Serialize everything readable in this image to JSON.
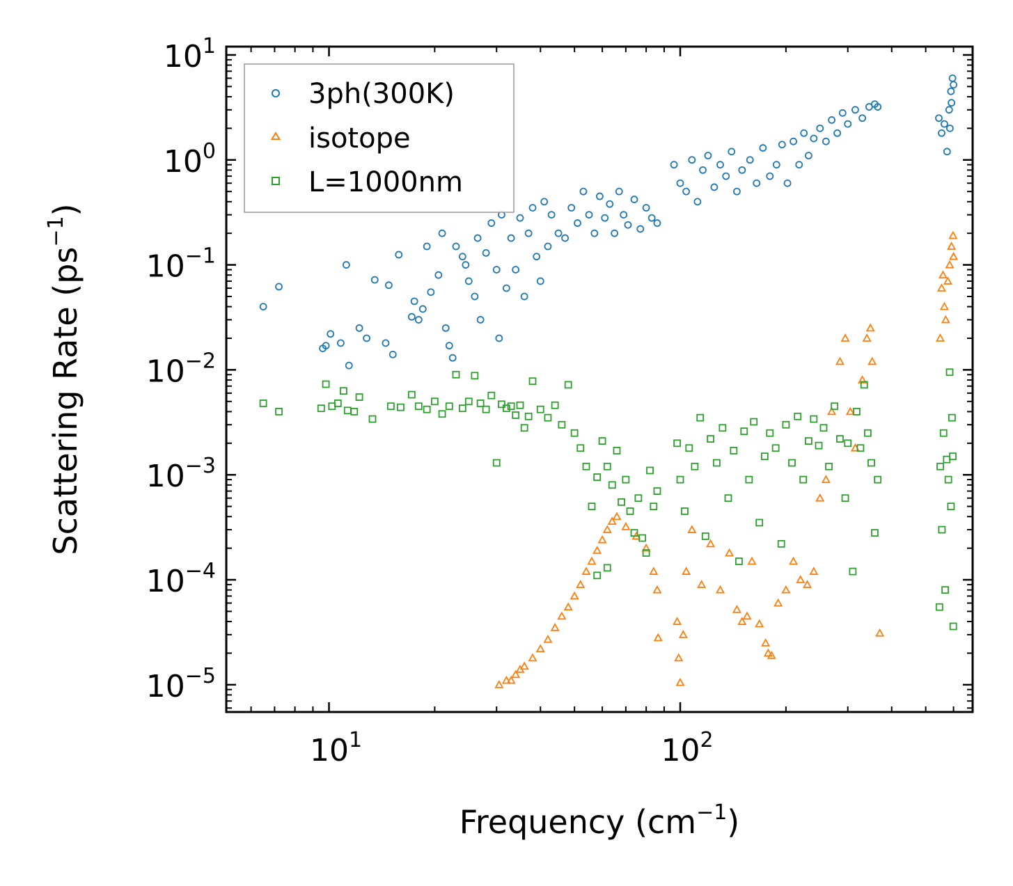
{
  "chart_data": {
    "type": "scatter",
    "title": "",
    "xlabel": "Frequency (cm",
    "xlabel_exp": "−1",
    "xlabel_suffix": ")",
    "ylabel": "Scattering Rate (ps",
    "ylabel_exp": "−1",
    "ylabel_suffix": ")",
    "xscale": "log",
    "yscale": "log",
    "xlim": [
      5.1,
      680
    ],
    "ylim": [
      5.5e-06,
      12
    ],
    "xticks": [
      {
        "value": 10,
        "base": "10",
        "exp": "1"
      },
      {
        "value": 100,
        "base": "10",
        "exp": "2"
      }
    ],
    "yticks": [
      {
        "value": 1e-05,
        "base": "10",
        "exp": "−5"
      },
      {
        "value": 0.0001,
        "base": "10",
        "exp": "−4"
      },
      {
        "value": 0.001,
        "base": "10",
        "exp": "−3"
      },
      {
        "value": 0.01,
        "base": "10",
        "exp": "−2"
      },
      {
        "value": 0.1,
        "base": "10",
        "exp": "−1"
      },
      {
        "value": 1,
        "base": "10",
        "exp": "0"
      },
      {
        "value": 10,
        "base": "10",
        "exp": "1"
      }
    ],
    "legend_position": "top-left",
    "series": [
      {
        "name": "3ph(300K)",
        "marker": "circle",
        "color": "#1f77b4",
        "points": [
          [
            6.5,
            0.04
          ],
          [
            7.2,
            0.062
          ],
          [
            9.6,
            0.016
          ],
          [
            9.8,
            0.017
          ],
          [
            10.1,
            0.022
          ],
          [
            10.8,
            0.018
          ],
          [
            11.2,
            0.1
          ],
          [
            11.4,
            0.011
          ],
          [
            12.2,
            0.025
          ],
          [
            12.8,
            0.02
          ],
          [
            13.5,
            0.072
          ],
          [
            14.5,
            0.018
          ],
          [
            14.8,
            0.064
          ],
          [
            15.2,
            0.014
          ],
          [
            15.8,
            0.125
          ],
          [
            17.2,
            0.032
          ],
          [
            17.5,
            0.045
          ],
          [
            18,
            0.03
          ],
          [
            18.5,
            0.038
          ],
          [
            19,
            0.15
          ],
          [
            19.5,
            0.055
          ],
          [
            20.5,
            0.08
          ],
          [
            21,
            0.2
          ],
          [
            21.5,
            0.025
          ],
          [
            22,
            0.017
          ],
          [
            22.5,
            0.013
          ],
          [
            23,
            0.15
          ],
          [
            24,
            0.12
          ],
          [
            24.5,
            0.1
          ],
          [
            25,
            0.07
          ],
          [
            26,
            0.05
          ],
          [
            26.5,
            0.18
          ],
          [
            27,
            0.03
          ],
          [
            28,
            0.13
          ],
          [
            29,
            0.25
          ],
          [
            30,
            0.09
          ],
          [
            30.5,
            0.02
          ],
          [
            31,
            0.3
          ],
          [
            32,
            0.06
          ],
          [
            33,
            0.18
          ],
          [
            34,
            0.09
          ],
          [
            35,
            0.28
          ],
          [
            36,
            0.05
          ],
          [
            37,
            0.2
          ],
          [
            38,
            0.35
          ],
          [
            39,
            0.12
          ],
          [
            40,
            0.07
          ],
          [
            41,
            0.4
          ],
          [
            42,
            0.15
          ],
          [
            43,
            0.3
          ],
          [
            45,
            0.2
          ],
          [
            47,
            0.18
          ],
          [
            49,
            0.35
          ],
          [
            51,
            0.25
          ],
          [
            53,
            0.5
          ],
          [
            55,
            0.3
          ],
          [
            57,
            0.2
          ],
          [
            59,
            0.45
          ],
          [
            61,
            0.28
          ],
          [
            63,
            0.38
          ],
          [
            65,
            0.2
          ],
          [
            67,
            0.5
          ],
          [
            69,
            0.3
          ],
          [
            71,
            0.24
          ],
          [
            74,
            0.42
          ],
          [
            77,
            0.22
          ],
          [
            80,
            0.35
          ],
          [
            83,
            0.28
          ],
          [
            86,
            0.25
          ],
          [
            96,
            0.9
          ],
          [
            100,
            0.6
          ],
          [
            104,
            0.5
          ],
          [
            108,
            1.0
          ],
          [
            112,
            0.4
          ],
          [
            116,
            0.8
          ],
          [
            120,
            1.1
          ],
          [
            125,
            0.55
          ],
          [
            130,
            0.9
          ],
          [
            135,
            0.7
          ],
          [
            140,
            1.2
          ],
          [
            145,
            0.5
          ],
          [
            150,
            0.8
          ],
          [
            158,
            1.0
          ],
          [
            165,
            0.6
          ],
          [
            172,
            1.3
          ],
          [
            180,
            0.7
          ],
          [
            188,
            0.9
          ],
          [
            195,
            1.4
          ],
          [
            202,
            0.6
          ],
          [
            210,
            1.5
          ],
          [
            218,
            0.9
          ],
          [
            225,
            1.8
          ],
          [
            232,
            1.1
          ],
          [
            240,
            1.6
          ],
          [
            250,
            2.0
          ],
          [
            260,
            1.5
          ],
          [
            270,
            2.4
          ],
          [
            280,
            1.8
          ],
          [
            290,
            2.8
          ],
          [
            300,
            2.2
          ],
          [
            315,
            3.0
          ],
          [
            330,
            2.5
          ],
          [
            345,
            3.2
          ],
          [
            358,
            3.4
          ],
          [
            365,
            3.2
          ],
          [
            545,
            2.5
          ],
          [
            555,
            1.8
          ],
          [
            565,
            2.2
          ],
          [
            575,
            1.2
          ],
          [
            583,
            3.0
          ],
          [
            590,
            4.5
          ],
          [
            596,
            6.0
          ],
          [
            600,
            5.2
          ],
          [
            592,
            3.5
          ],
          [
            586,
            2.0
          ]
        ]
      },
      {
        "name": "isotope",
        "marker": "triangle",
        "color": "#ff7f0e",
        "points": [
          [
            30.5,
            1e-05
          ],
          [
            32,
            1.1e-05
          ],
          [
            33,
            1.1e-05
          ],
          [
            34,
            1.25e-05
          ],
          [
            35,
            1.4e-05
          ],
          [
            36,
            1.5e-05
          ],
          [
            38,
            1.8e-05
          ],
          [
            40,
            2.2e-05
          ],
          [
            42,
            2.7e-05
          ],
          [
            44,
            3.5e-05
          ],
          [
            46,
            4.5e-05
          ],
          [
            48,
            5.5e-05
          ],
          [
            50,
            7e-05
          ],
          [
            52,
            9e-05
          ],
          [
            54,
            0.00012
          ],
          [
            56,
            0.00015
          ],
          [
            58,
            0.00019
          ],
          [
            60,
            0.00024
          ],
          [
            62,
            0.0003
          ],
          [
            64,
            0.00036
          ],
          [
            66,
            0.0004
          ],
          [
            70,
            0.00032
          ],
          [
            75,
            0.00026
          ],
          [
            80,
            0.0002
          ],
          [
            84,
            0.00012
          ],
          [
            86,
            8e-05
          ],
          [
            86.5,
            2.8e-05
          ],
          [
            98,
            4e-05
          ],
          [
            99,
            1.8e-05
          ],
          [
            100,
            1.05e-05
          ],
          [
            102,
            3e-05
          ],
          [
            104,
            0.00012
          ],
          [
            108,
            0.0003
          ],
          [
            115,
            9e-05
          ],
          [
            122,
            0.00022
          ],
          [
            130,
            8e-05
          ],
          [
            138,
            0.00018
          ],
          [
            145,
            5.2e-05
          ],
          [
            150,
            4e-05
          ],
          [
            155,
            4.5e-05
          ],
          [
            160,
            0.00015
          ],
          [
            168,
            3.8e-05
          ],
          [
            175,
            2.5e-05
          ],
          [
            178,
            2e-05
          ],
          [
            182,
            1.9e-05
          ],
          [
            190,
            6e-05
          ],
          [
            200,
            8e-05
          ],
          [
            210,
            0.00015
          ],
          [
            220,
            0.0001
          ],
          [
            230,
            9e-05
          ],
          [
            240,
            0.00012
          ],
          [
            250,
            0.0006
          ],
          [
            260,
            0.0009
          ],
          [
            270,
            0.004
          ],
          [
            285,
            0.012
          ],
          [
            295,
            0.02
          ],
          [
            305,
            0.004
          ],
          [
            315,
            0.0018
          ],
          [
            330,
            0.008
          ],
          [
            340,
            0.02
          ],
          [
            348,
            0.025
          ],
          [
            352,
            0.012
          ],
          [
            370,
            3.1e-05
          ],
          [
            550,
            0.02
          ],
          [
            555,
            0.06
          ],
          [
            560,
            0.08
          ],
          [
            565,
            0.04
          ],
          [
            570,
            0.03
          ],
          [
            578,
            0.07
          ],
          [
            585,
            0.1
          ],
          [
            592,
            0.15
          ],
          [
            598,
            0.19
          ],
          [
            600,
            0.12
          ]
        ]
      },
      {
        "name": "L=1000nm",
        "marker": "square",
        "color": "#2ca02c",
        "points": [
          [
            6.5,
            0.0048
          ],
          [
            7.2,
            0.004
          ],
          [
            9.5,
            0.0043
          ],
          [
            9.8,
            0.0073
          ],
          [
            10.2,
            0.0045
          ],
          [
            10.6,
            0.0048
          ],
          [
            11,
            0.0063
          ],
          [
            11.3,
            0.0041
          ],
          [
            11.8,
            0.004
          ],
          [
            12.2,
            0.0055
          ],
          [
            13.3,
            0.0034
          ],
          [
            15,
            0.0045
          ],
          [
            16,
            0.0044
          ],
          [
            17.2,
            0.0058
          ],
          [
            18,
            0.0045
          ],
          [
            19,
            0.0042
          ],
          [
            20,
            0.005
          ],
          [
            21,
            0.0038
          ],
          [
            22,
            0.0045
          ],
          [
            23,
            0.009
          ],
          [
            24,
            0.0043
          ],
          [
            25,
            0.005
          ],
          [
            26,
            0.0088
          ],
          [
            27,
            0.0048
          ],
          [
            28,
            0.0042
          ],
          [
            29,
            0.0057
          ],
          [
            30,
            0.0013
          ],
          [
            31,
            0.0047
          ],
          [
            32,
            0.0043
          ],
          [
            33,
            0.0045
          ],
          [
            34,
            0.0037
          ],
          [
            35,
            0.0046
          ],
          [
            36,
            0.0028
          ],
          [
            37,
            0.0036
          ],
          [
            38,
            0.0078
          ],
          [
            40,
            0.0042
          ],
          [
            42,
            0.0035
          ],
          [
            44,
            0.0046
          ],
          [
            46,
            0.003
          ],
          [
            48,
            0.0072
          ],
          [
            50,
            0.0025
          ],
          [
            52,
            0.0018
          ],
          [
            54,
            0.0012
          ],
          [
            56,
            0.0005
          ],
          [
            58,
            0.00095
          ],
          [
            60,
            0.0021
          ],
          [
            62,
            0.0012
          ],
          [
            64,
            0.0008
          ],
          [
            66,
            0.0017
          ],
          [
            68,
            0.00055
          ],
          [
            70,
            0.0009
          ],
          [
            72,
            0.00045
          ],
          [
            74,
            0.00028
          ],
          [
            76,
            0.0006
          ],
          [
            78,
            0.00025
          ],
          [
            80,
            0.00018
          ],
          [
            82,
            0.0011
          ],
          [
            84,
            0.0005
          ],
          [
            86,
            0.0007
          ],
          [
            62,
            0.00013
          ],
          [
            58,
            0.00011
          ],
          [
            98,
            0.002
          ],
          [
            100,
            0.0009
          ],
          [
            103,
            0.00045
          ],
          [
            106,
            0.0018
          ],
          [
            110,
            0.0012
          ],
          [
            114,
            0.0035
          ],
          [
            118,
            0.00026
          ],
          [
            122,
            0.0022
          ],
          [
            127,
            0.0013
          ],
          [
            132,
            0.0028
          ],
          [
            137,
            0.0006
          ],
          [
            142,
            0.0017
          ],
          [
            147,
            0.00015
          ],
          [
            152,
            0.0026
          ],
          [
            157,
            0.0009
          ],
          [
            162,
            0.0032
          ],
          [
            168,
            0.00035
          ],
          [
            174,
            0.0015
          ],
          [
            180,
            0.0025
          ],
          [
            187,
            0.0018
          ],
          [
            194,
            0.00022
          ],
          [
            200,
            0.003
          ],
          [
            208,
            0.0013
          ],
          [
            216,
            0.0036
          ],
          [
            224,
            0.0009
          ],
          [
            232,
            0.0021
          ],
          [
            240,
            0.0034
          ],
          [
            248,
            0.0019
          ],
          [
            256,
            0.0028
          ],
          [
            265,
            0.0012
          ],
          [
            275,
            0.0045
          ],
          [
            285,
            0.0022
          ],
          [
            295,
            0.0006
          ],
          [
            300,
            0.002
          ],
          [
            310,
            0.00012
          ],
          [
            318,
            0.004
          ],
          [
            326,
            0.0018
          ],
          [
            334,
            0.0072
          ],
          [
            342,
            0.0025
          ],
          [
            350,
            0.0013
          ],
          [
            358,
            0.00028
          ],
          [
            365,
            0.0009
          ],
          [
            547,
            5.5e-05
          ],
          [
            550,
            0.0012
          ],
          [
            556,
            0.0003
          ],
          [
            562,
            0.0025
          ],
          [
            568,
            8e-05
          ],
          [
            574,
            0.0014
          ],
          [
            580,
            0.0009
          ],
          [
            585,
            0.0095
          ],
          [
            590,
            0.0005
          ],
          [
            594,
            0.0035
          ],
          [
            597,
            0.0015
          ],
          [
            599,
            3.6e-05
          ]
        ]
      }
    ]
  }
}
